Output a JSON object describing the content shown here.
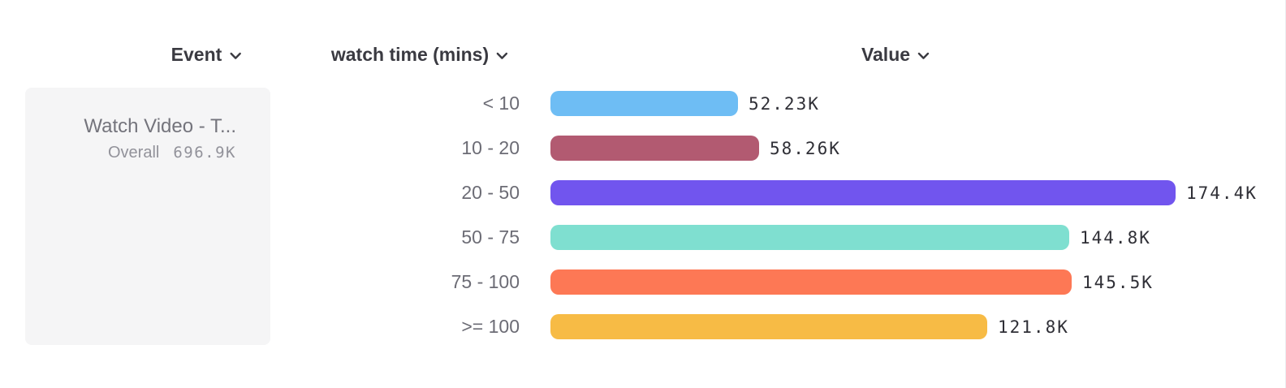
{
  "header": {
    "columns": [
      {
        "label": "Event",
        "icon": "chevron-down-icon"
      },
      {
        "label": "watch time (mins)",
        "icon": "chevron-down-icon"
      },
      {
        "label": "Value",
        "icon": "chevron-down-icon"
      }
    ]
  },
  "event_card": {
    "name": "Watch Video - T...",
    "overall_label": "Overall",
    "overall_value": "696.9K"
  },
  "chart_data": {
    "type": "bar",
    "orientation": "horizontal",
    "title": "",
    "xlabel": "Value",
    "ylabel": "watch time (mins)",
    "categories": [
      "< 10",
      "10 - 20",
      "20 - 50",
      "50 - 75",
      "75 - 100",
      ">= 100"
    ],
    "values": [
      52230,
      58260,
      174400,
      144800,
      145500,
      121800
    ],
    "value_labels": [
      "52.23K",
      "58.26K",
      "174.4K",
      "144.8K",
      "145.5K",
      "121.8K"
    ],
    "bar_colors": [
      "#6ebdf4",
      "#b25a71",
      "#7155ee",
      "#7fdfd0",
      "#fd7855",
      "#f7bb45"
    ],
    "max_value": 174400,
    "grid": false,
    "legend_position": "none"
  },
  "colors": {
    "background": "#ffffff",
    "card_background": "#f5f5f6",
    "header_text": "#3a3a41",
    "category_text": "#6c6c75",
    "value_text": "#2f2f36",
    "muted_text": "#92929a"
  }
}
